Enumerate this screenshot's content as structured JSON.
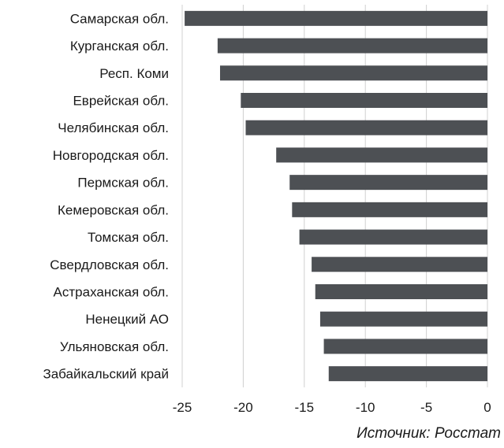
{
  "chart_data": {
    "type": "bar",
    "orientation": "horizontal",
    "categories": [
      "Самарская обл.",
      "Курганская обл.",
      "Респ. Коми",
      "Еврейская обл.",
      "Челябинская обл.",
      "Новгородская обл.",
      "Пермская обл.",
      "Кемеровская обл.",
      "Томская обл.",
      "Свердловская обл.",
      "Астраханская обл.",
      "Ненецкий АО",
      "Ульяновская обл.",
      "Забайкальский край"
    ],
    "values": [
      -24.8,
      -22.1,
      -21.9,
      -20.2,
      -19.8,
      -17.3,
      -16.2,
      -16.0,
      -15.4,
      -14.4,
      -14.1,
      -13.7,
      -13.4,
      -13.0
    ],
    "xlim": [
      -25,
      0
    ],
    "xticks": [
      -25,
      -20,
      -15,
      -10,
      -5,
      0
    ],
    "tick_labels": [
      "-25",
      "-20",
      "-15",
      "-10",
      "-5",
      "0"
    ],
    "grid": "vertical",
    "bar_color": "#4d5054",
    "grid_color": "#d0d0d0"
  },
  "source": "Источник: Росстат"
}
